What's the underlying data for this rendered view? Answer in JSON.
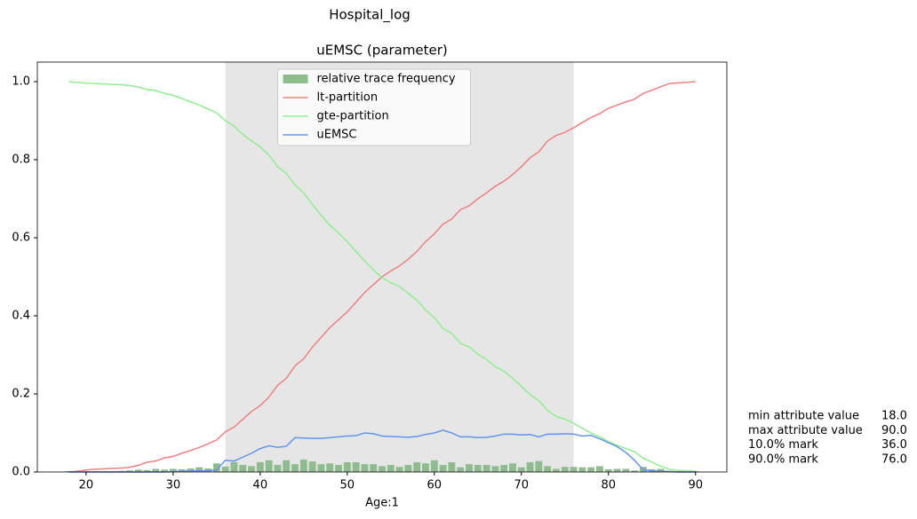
{
  "chart_data": {
    "type": "line",
    "suptitle": "Hospital_log",
    "title": "uEMSC (parameter)",
    "x_label": "Age:1",
    "xlim": [
      14.4,
      93.6
    ],
    "ylim": [
      0,
      1.05
    ],
    "xticks": [
      20,
      30,
      40,
      50,
      60,
      70,
      80,
      90
    ],
    "yticks": [
      {
        "value": 0,
        "label": "0.0"
      },
      0.2,
      0.4,
      0.6,
      0.8,
      {
        "value": 1,
        "label": "1.0"
      }
    ],
    "legend": "upper center",
    "x": [
      18,
      19,
      20,
      21,
      22,
      23,
      24,
      25,
      26,
      27,
      28,
      29,
      30,
      31,
      32,
      33,
      34,
      35,
      36,
      37,
      38,
      39,
      40,
      41,
      42,
      43,
      44,
      45,
      46,
      47,
      48,
      49,
      50,
      51,
      52,
      53,
      54,
      55,
      56,
      57,
      58,
      59,
      60,
      61,
      62,
      63,
      64,
      65,
      66,
      67,
      68,
      69,
      70,
      71,
      72,
      73,
      74,
      75,
      76,
      77,
      78,
      79,
      80,
      81,
      82,
      83,
      84,
      85,
      86,
      87,
      88,
      89,
      90
    ],
    "series": [
      {
        "name": "relative trace frequency",
        "type": "bar",
        "color": "#8fbc8f",
        "values": [
          0.002,
          0.002,
          0.002,
          0.002,
          0.002,
          0.002,
          0.003,
          0.004,
          0.006,
          0.005,
          0.008,
          0.006,
          0.008,
          0.007,
          0.009,
          0.012,
          0.009,
          0.022,
          0.014,
          0.025,
          0.018,
          0.015,
          0.025,
          0.03,
          0.018,
          0.03,
          0.02,
          0.032,
          0.027,
          0.02,
          0.022,
          0.018,
          0.025,
          0.025,
          0.02,
          0.02,
          0.015,
          0.018,
          0.013,
          0.018,
          0.025,
          0.022,
          0.03,
          0.018,
          0.025,
          0.012,
          0.02,
          0.018,
          0.018,
          0.015,
          0.018,
          0.022,
          0.012,
          0.025,
          0.028,
          0.015,
          0.008,
          0.013,
          0.013,
          0.012,
          0.012,
          0.015,
          0.007,
          0.008,
          0.008,
          0.004,
          0.013,
          0.007,
          0.008,
          0.003,
          0.002,
          0.002,
          0.002
        ]
      },
      {
        "name": "lt-partition",
        "type": "line",
        "color": "#f08080",
        "values": [
          0,
          0.002,
          0.005,
          0.007,
          0.008,
          0.009,
          0.01,
          0.012,
          0.017,
          0.025,
          0.028,
          0.036,
          0.04,
          0.048,
          0.055,
          0.063,
          0.072,
          0.082,
          0.103,
          0.115,
          0.135,
          0.155,
          0.17,
          0.192,
          0.222,
          0.24,
          0.272,
          0.29,
          0.32,
          0.345,
          0.37,
          0.39,
          0.41,
          0.435,
          0.46,
          0.48,
          0.5,
          0.515,
          0.528,
          0.545,
          0.565,
          0.59,
          0.61,
          0.635,
          0.648,
          0.672,
          0.682,
          0.7,
          0.715,
          0.732,
          0.745,
          0.762,
          0.782,
          0.805,
          0.82,
          0.848,
          0.862,
          0.87,
          0.882,
          0.895,
          0.908,
          0.918,
          0.932,
          0.94,
          0.948,
          0.955,
          0.97,
          0.978,
          0.987,
          0.995,
          0.997,
          0.998,
          1.0
        ]
      },
      {
        "name": "gte-partition",
        "type": "line",
        "color": "#90ee90",
        "values": [
          1.0,
          0.998,
          0.996,
          0.995,
          0.994,
          0.993,
          0.992,
          0.99,
          0.986,
          0.98,
          0.977,
          0.97,
          0.965,
          0.957,
          0.948,
          0.94,
          0.93,
          0.92,
          0.9,
          0.886,
          0.865,
          0.848,
          0.833,
          0.812,
          0.782,
          0.765,
          0.735,
          0.715,
          0.685,
          0.658,
          0.632,
          0.612,
          0.59,
          0.565,
          0.54,
          0.518,
          0.498,
          0.485,
          0.475,
          0.458,
          0.44,
          0.415,
          0.395,
          0.368,
          0.355,
          0.33,
          0.32,
          0.302,
          0.288,
          0.27,
          0.258,
          0.24,
          0.22,
          0.198,
          0.183,
          0.158,
          0.142,
          0.135,
          0.125,
          0.112,
          0.1,
          0.09,
          0.078,
          0.068,
          0.06,
          0.052,
          0.035,
          0.025,
          0.015,
          0.007,
          0.004,
          0.003,
          0.002
        ]
      },
      {
        "name": "uEMSC",
        "type": "line",
        "color": "#6495ed",
        "values": [
          0,
          0,
          0,
          0,
          0,
          0,
          0,
          0,
          0,
          0,
          0,
          0,
          0.001,
          0.002,
          0.003,
          0.003,
          0.003,
          0.005,
          0.03,
          0.028,
          0.038,
          0.048,
          0.06,
          0.067,
          0.063,
          0.066,
          0.088,
          0.087,
          0.086,
          0.086,
          0.088,
          0.09,
          0.092,
          0.093,
          0.1,
          0.098,
          0.092,
          0.091,
          0.09,
          0.089,
          0.091,
          0.096,
          0.1,
          0.107,
          0.1,
          0.09,
          0.09,
          0.088,
          0.089,
          0.092,
          0.097,
          0.097,
          0.095,
          0.096,
          0.09,
          0.097,
          0.097,
          0.098,
          0.097,
          0.092,
          0.094,
          0.085,
          0.075,
          0.065,
          0.05,
          0.03,
          0.005,
          0.003,
          0.002,
          0.001,
          0,
          0,
          0
        ]
      }
    ],
    "stats": [
      {
        "name": "min attribute value",
        "value": 18,
        "label": "18.0"
      },
      {
        "name": "max attribute value",
        "value": 90,
        "label": "90.0"
      },
      {
        "name": "10.0% mark",
        "value": 36,
        "label": "36.0"
      },
      {
        "name": "90.0% mark",
        "value": 76,
        "label": "76.0"
      }
    ]
  }
}
